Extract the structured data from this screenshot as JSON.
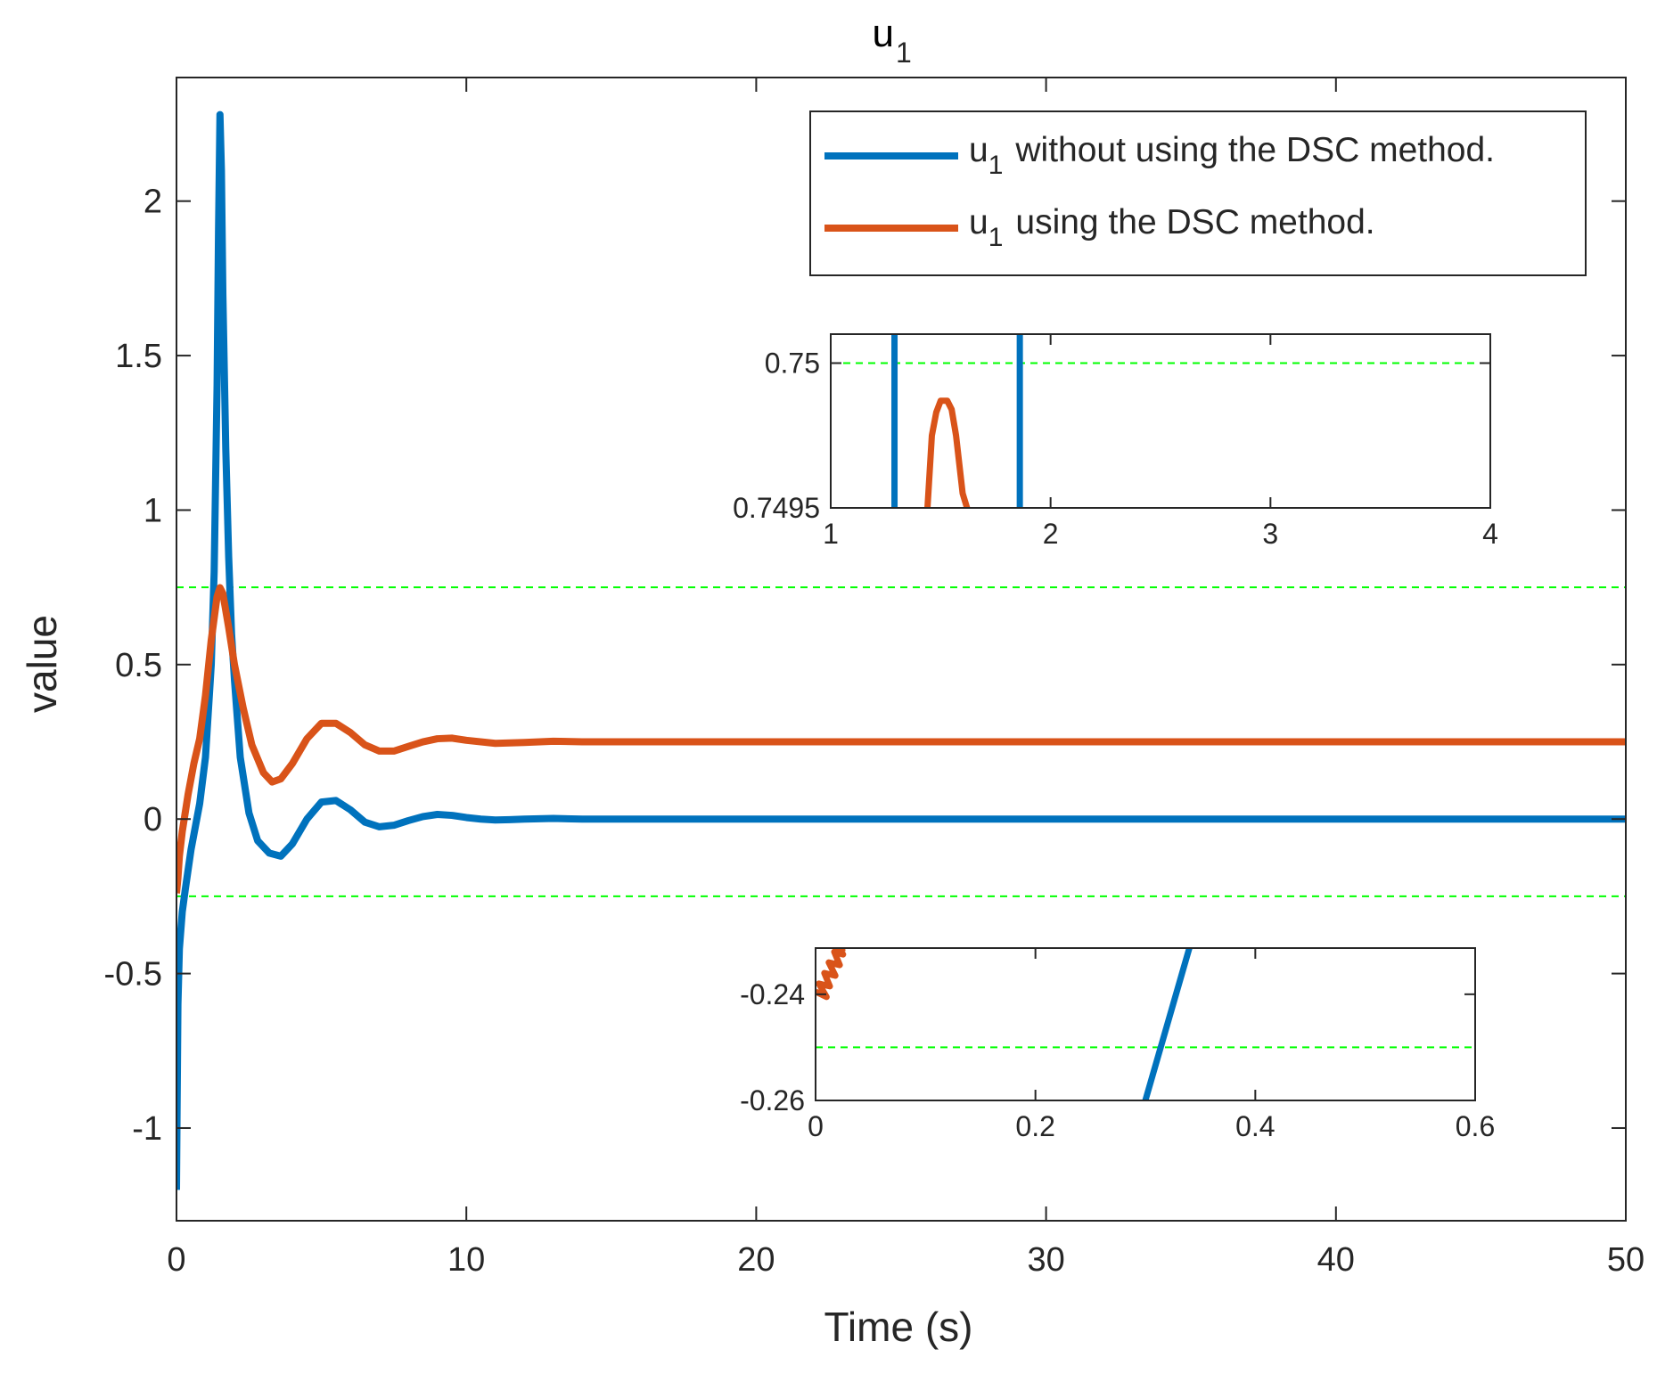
{
  "chart_data": {
    "type": "line",
    "title": "u",
    "title_subscript": "1",
    "xlabel": "Time (s)",
    "ylabel": "value",
    "xlim": [
      0,
      50
    ],
    "ylim": [
      -1.3,
      2.4
    ],
    "xticks": [
      0,
      10,
      20,
      30,
      40,
      50
    ],
    "yticks": [
      -1,
      -0.5,
      0,
      0.5,
      1,
      1.5,
      2
    ],
    "reference_lines": [
      0.75,
      -0.25
    ],
    "legend": {
      "position": "top-right",
      "entries": [
        {
          "prefix": "u",
          "sub": "1",
          "text": "without using the DSC method."
        },
        {
          "prefix": "u",
          "sub": "1",
          "text": "using the DSC method."
        }
      ]
    },
    "series": [
      {
        "name": "u1 without using the DSC method.",
        "color": "#0072BD",
        "x": [
          0,
          0.02,
          0.05,
          0.1,
          0.2,
          0.3,
          0.5,
          0.8,
          1.0,
          1.2,
          1.3,
          1.4,
          1.45,
          1.5,
          1.55,
          1.6,
          1.7,
          1.8,
          1.9,
          2.0,
          2.2,
          2.5,
          2.8,
          3.2,
          3.6,
          4.0,
          4.5,
          5.0,
          5.5,
          6.0,
          6.5,
          7.0,
          7.5,
          8.0,
          8.5,
          9.0,
          9.5,
          10.0,
          10.5,
          11.0,
          11.5,
          12.0,
          13.0,
          14.0,
          15.0,
          20.0,
          30.0,
          40.0,
          50.0
        ],
        "values": [
          -1.2,
          -0.95,
          -0.6,
          -0.42,
          -0.3,
          -0.23,
          -0.1,
          0.05,
          0.2,
          0.5,
          0.8,
          1.4,
          1.9,
          2.28,
          2.1,
          1.7,
          1.2,
          0.85,
          0.6,
          0.45,
          0.2,
          0.02,
          -0.07,
          -0.11,
          -0.12,
          -0.08,
          0.0,
          0.055,
          0.06,
          0.03,
          -0.01,
          -0.025,
          -0.02,
          -0.005,
          0.008,
          0.015,
          0.012,
          0.005,
          0.0,
          -0.003,
          -0.002,
          0.0,
          0.002,
          0.0,
          0.0,
          0.0,
          0.0,
          0.0,
          0.0
        ]
      },
      {
        "name": "u1 using the DSC method.",
        "color": "#D95319",
        "x": [
          0,
          0.05,
          0.1,
          0.2,
          0.4,
          0.6,
          0.8,
          1.0,
          1.2,
          1.4,
          1.5,
          1.6,
          1.8,
          2.0,
          2.3,
          2.6,
          3.0,
          3.3,
          3.6,
          4.0,
          4.5,
          5.0,
          5.5,
          6.0,
          6.5,
          7.0,
          7.5,
          8.0,
          8.5,
          9.0,
          9.5,
          10.0,
          11.0,
          12.0,
          13.0,
          14.0,
          15.0,
          20.0,
          30.0,
          40.0,
          50.0
        ],
        "values": [
          -0.24,
          -0.19,
          -0.12,
          -0.04,
          0.08,
          0.18,
          0.26,
          0.4,
          0.58,
          0.72,
          0.749,
          0.73,
          0.62,
          0.5,
          0.36,
          0.24,
          0.15,
          0.12,
          0.13,
          0.18,
          0.26,
          0.31,
          0.31,
          0.28,
          0.24,
          0.22,
          0.22,
          0.235,
          0.25,
          0.26,
          0.262,
          0.255,
          0.245,
          0.248,
          0.252,
          0.25,
          0.25,
          0.25,
          0.25,
          0.25,
          0.25
        ]
      }
    ],
    "insets": [
      {
        "xlim": [
          1,
          4
        ],
        "ylim": [
          0.7495,
          0.7501
        ],
        "xticks": [
          1,
          2,
          3,
          4
        ],
        "yticks": [
          0.7495,
          0.75
        ],
        "reference_line": 0.75,
        "series": [
          {
            "name": "u1 without using the DSC method.",
            "color": "#0072BD",
            "x": [
              1.29,
              1.29
            ],
            "values": [
              0.7495,
              0.7501
            ]
          },
          {
            "name": "u1 without using the DSC method.",
            "color": "#0072BD",
            "x": [
              1.86,
              1.86
            ],
            "values": [
              0.7495,
              0.7501
            ]
          },
          {
            "name": "u1 using the DSC method.",
            "color": "#D95319",
            "x": [
              1.44,
              1.46,
              1.48,
              1.5,
              1.53,
              1.55,
              1.57,
              1.6,
              1.62
            ],
            "values": [
              0.7495,
              0.74975,
              0.74983,
              0.74987,
              0.74987,
              0.74984,
              0.74975,
              0.74955,
              0.7495
            ]
          }
        ]
      },
      {
        "xlim": [
          0,
          0.6
        ],
        "ylim": [
          -0.26,
          -0.2313
        ],
        "xticks": [
          0,
          0.2,
          0.4,
          0.6
        ],
        "yticks": [
          -0.26,
          -0.24
        ],
        "reference_line": -0.25,
        "series": [
          {
            "name": "u1 without using the DSC method.",
            "color": "#0072BD",
            "x": [
              0.3,
              0.34
            ],
            "values": [
              -0.26,
              -0.2313
            ]
          },
          {
            "name": "u1 using the DSC method.",
            "color": "#D95319",
            "x": [
              0.0,
              0.01,
              0.003,
              0.013,
              0.008,
              0.018,
              0.012,
              0.022,
              0.017,
              0.025,
              0.021,
              0.027
            ],
            "values": [
              -0.2395,
              -0.2405,
              -0.238,
              -0.2385,
              -0.236,
              -0.2365,
              -0.234,
              -0.2345,
              -0.232,
              -0.2325,
              -0.2314,
              -0.2313
            ]
          }
        ]
      }
    ]
  }
}
